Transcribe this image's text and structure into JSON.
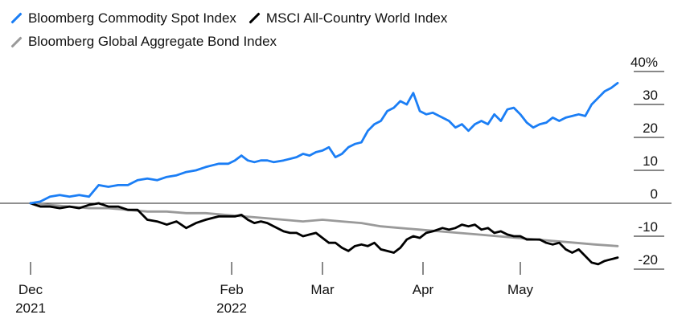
{
  "chart_data": {
    "type": "line",
    "title": "",
    "xlabel": "",
    "ylabel": "",
    "ylim": [
      -25,
      45
    ],
    "y_ticks": [
      {
        "value": 40,
        "label": "40%"
      },
      {
        "value": 30,
        "label": "30"
      },
      {
        "value": 20,
        "label": "20"
      },
      {
        "value": 10,
        "label": "10"
      },
      {
        "value": 0,
        "label": "0"
      },
      {
        "value": -10,
        "label": "-10"
      },
      {
        "value": -20,
        "label": "-20"
      }
    ],
    "x_ticks": [
      {
        "date": "2021-12-01",
        "label1": "Dec",
        "label2": "2021"
      },
      {
        "date": "2022-02-01",
        "label1": "Feb",
        "label2": "2022"
      },
      {
        "date": "2022-03-01",
        "label1": "Mar",
        "label2": ""
      },
      {
        "date": "2022-04-01",
        "label1": "Apr",
        "label2": ""
      },
      {
        "date": "2022-05-01",
        "label1": "May",
        "label2": ""
      }
    ],
    "xlim": [
      "2021-12-01",
      "2022-05-31"
    ],
    "legend_position": "top-left",
    "grid": false,
    "series": [
      {
        "name": "Bloomberg Commodity Spot Index",
        "color": "#1b7ef5",
        "points": [
          [
            "2021-12-01",
            0
          ],
          [
            "2021-12-04",
            0.5
          ],
          [
            "2021-12-07",
            2
          ],
          [
            "2021-12-10",
            2.5
          ],
          [
            "2021-12-13",
            2
          ],
          [
            "2021-12-16",
            2.5
          ],
          [
            "2021-12-19",
            2
          ],
          [
            "2021-12-22",
            5.5
          ],
          [
            "2021-12-25",
            5
          ],
          [
            "2021-12-28",
            5.5
          ],
          [
            "2021-12-31",
            5.5
          ],
          [
            "2022-01-03",
            7
          ],
          [
            "2022-01-06",
            7.5
          ],
          [
            "2022-01-09",
            7
          ],
          [
            "2022-01-12",
            8
          ],
          [
            "2022-01-15",
            8.5
          ],
          [
            "2022-01-18",
            9.5
          ],
          [
            "2022-01-21",
            10
          ],
          [
            "2022-01-24",
            11
          ],
          [
            "2022-01-26",
            11.5
          ],
          [
            "2022-01-28",
            12
          ],
          [
            "2022-01-31",
            12
          ],
          [
            "2022-02-02",
            13
          ],
          [
            "2022-02-04",
            14.5
          ],
          [
            "2022-02-06",
            13
          ],
          [
            "2022-02-08",
            12.5
          ],
          [
            "2022-02-10",
            13
          ],
          [
            "2022-02-12",
            13
          ],
          [
            "2022-02-14",
            12.5
          ],
          [
            "2022-02-17",
            13
          ],
          [
            "2022-02-19",
            13.5
          ],
          [
            "2022-02-21",
            14
          ],
          [
            "2022-02-23",
            15
          ],
          [
            "2022-02-25",
            14.5
          ],
          [
            "2022-02-27",
            15.5
          ],
          [
            "2022-03-01",
            16
          ],
          [
            "2022-03-03",
            17
          ],
          [
            "2022-03-05",
            14
          ],
          [
            "2022-03-07",
            15
          ],
          [
            "2022-03-09",
            17
          ],
          [
            "2022-03-11",
            18
          ],
          [
            "2022-03-13",
            18.5
          ],
          [
            "2022-03-15",
            22
          ],
          [
            "2022-03-17",
            24
          ],
          [
            "2022-03-19",
            25
          ],
          [
            "2022-03-21",
            28
          ],
          [
            "2022-03-23",
            29
          ],
          [
            "2022-03-25",
            31
          ],
          [
            "2022-03-27",
            30
          ],
          [
            "2022-03-29",
            33.5
          ],
          [
            "2022-03-31",
            28
          ],
          [
            "2022-04-02",
            27
          ],
          [
            "2022-04-04",
            27.5
          ],
          [
            "2022-04-07",
            26
          ],
          [
            "2022-04-09",
            25
          ],
          [
            "2022-04-11",
            23
          ],
          [
            "2022-04-13",
            24
          ],
          [
            "2022-04-15",
            22
          ],
          [
            "2022-04-17",
            24
          ],
          [
            "2022-04-19",
            25
          ],
          [
            "2022-04-21",
            24
          ],
          [
            "2022-04-23",
            27
          ],
          [
            "2022-04-25",
            25
          ],
          [
            "2022-04-27",
            28.5
          ],
          [
            "2022-04-29",
            29
          ],
          [
            "2022-05-01",
            27
          ],
          [
            "2022-05-03",
            24.5
          ],
          [
            "2022-05-05",
            23
          ],
          [
            "2022-05-07",
            24
          ],
          [
            "2022-05-09",
            24.5
          ],
          [
            "2022-05-11",
            26
          ],
          [
            "2022-05-13",
            25
          ],
          [
            "2022-05-15",
            26
          ],
          [
            "2022-05-17",
            26.5
          ],
          [
            "2022-05-19",
            27
          ],
          [
            "2022-05-21",
            26.5
          ],
          [
            "2022-05-23",
            30
          ],
          [
            "2022-05-25",
            32
          ],
          [
            "2022-05-27",
            34
          ],
          [
            "2022-05-29",
            35
          ],
          [
            "2022-05-31",
            36.5
          ]
        ]
      },
      {
        "name": "MSCI All-Country World Index",
        "color": "#000000",
        "points": [
          [
            "2021-12-01",
            0
          ],
          [
            "2021-12-04",
            -1
          ],
          [
            "2021-12-07",
            -1
          ],
          [
            "2021-12-10",
            -1.5
          ],
          [
            "2021-12-13",
            -1
          ],
          [
            "2021-12-16",
            -1.5
          ],
          [
            "2021-12-19",
            -0.5
          ],
          [
            "2021-12-22",
            0
          ],
          [
            "2021-12-25",
            -1
          ],
          [
            "2021-12-28",
            -1
          ],
          [
            "2021-12-31",
            -2
          ],
          [
            "2022-01-03",
            -2
          ],
          [
            "2022-01-06",
            -5
          ],
          [
            "2022-01-09",
            -5.5
          ],
          [
            "2022-01-12",
            -6.5
          ],
          [
            "2022-01-15",
            -5.5
          ],
          [
            "2022-01-18",
            -7.5
          ],
          [
            "2022-01-21",
            -6
          ],
          [
            "2022-01-24",
            -5
          ],
          [
            "2022-01-26",
            -4.5
          ],
          [
            "2022-01-28",
            -4
          ],
          [
            "2022-01-31",
            -4
          ],
          [
            "2022-02-02",
            -4
          ],
          [
            "2022-02-04",
            -3.5
          ],
          [
            "2022-02-06",
            -5
          ],
          [
            "2022-02-08",
            -6
          ],
          [
            "2022-02-10",
            -5.5
          ],
          [
            "2022-02-12",
            -6
          ],
          [
            "2022-02-14",
            -7
          ],
          [
            "2022-02-17",
            -8.5
          ],
          [
            "2022-02-19",
            -9
          ],
          [
            "2022-02-21",
            -9
          ],
          [
            "2022-02-23",
            -10
          ],
          [
            "2022-02-25",
            -9.5
          ],
          [
            "2022-02-27",
            -9
          ],
          [
            "2022-03-01",
            -10.5
          ],
          [
            "2022-03-03",
            -12
          ],
          [
            "2022-03-05",
            -12
          ],
          [
            "2022-03-07",
            -13.5
          ],
          [
            "2022-03-09",
            -14.5
          ],
          [
            "2022-03-11",
            -13
          ],
          [
            "2022-03-13",
            -12.5
          ],
          [
            "2022-03-15",
            -13
          ],
          [
            "2022-03-17",
            -12
          ],
          [
            "2022-03-19",
            -14
          ],
          [
            "2022-03-21",
            -14.5
          ],
          [
            "2022-03-23",
            -15
          ],
          [
            "2022-03-25",
            -13.5
          ],
          [
            "2022-03-27",
            -11
          ],
          [
            "2022-03-29",
            -10
          ],
          [
            "2022-03-31",
            -10.5
          ],
          [
            "2022-04-02",
            -9
          ],
          [
            "2022-04-04",
            -8.5
          ],
          [
            "2022-04-07",
            -7.5
          ],
          [
            "2022-04-09",
            -8
          ],
          [
            "2022-04-11",
            -7.5
          ],
          [
            "2022-04-13",
            -6.5
          ],
          [
            "2022-04-15",
            -7
          ],
          [
            "2022-04-17",
            -6.5
          ],
          [
            "2022-04-19",
            -8
          ],
          [
            "2022-04-21",
            -7.5
          ],
          [
            "2022-04-23",
            -9
          ],
          [
            "2022-04-25",
            -8.5
          ],
          [
            "2022-04-27",
            -9.5
          ],
          [
            "2022-04-29",
            -10
          ],
          [
            "2022-05-01",
            -10
          ],
          [
            "2022-05-03",
            -11
          ],
          [
            "2022-05-05",
            -11
          ],
          [
            "2022-05-07",
            -11
          ],
          [
            "2022-05-09",
            -12
          ],
          [
            "2022-05-11",
            -12.5
          ],
          [
            "2022-05-13",
            -12
          ],
          [
            "2022-05-15",
            -14
          ],
          [
            "2022-05-17",
            -15
          ],
          [
            "2022-05-19",
            -14
          ],
          [
            "2022-05-21",
            -16
          ],
          [
            "2022-05-23",
            -18
          ],
          [
            "2022-05-25",
            -18.5
          ],
          [
            "2022-05-27",
            -17.5
          ],
          [
            "2022-05-29",
            -17
          ],
          [
            "2022-05-31",
            -16.5
          ]
        ]
      },
      {
        "name": "Bloomberg Global Aggregate Bond Index",
        "color": "#9a9a9a",
        "points": [
          [
            "2021-12-01",
            0
          ],
          [
            "2021-12-07",
            -0.5
          ],
          [
            "2021-12-13",
            -1
          ],
          [
            "2021-12-19",
            -1.5
          ],
          [
            "2021-12-25",
            -1.5
          ],
          [
            "2021-12-31",
            -2
          ],
          [
            "2022-01-06",
            -2.5
          ],
          [
            "2022-01-12",
            -2.5
          ],
          [
            "2022-01-18",
            -3
          ],
          [
            "2022-01-24",
            -3
          ],
          [
            "2022-01-30",
            -3.5
          ],
          [
            "2022-02-05",
            -4
          ],
          [
            "2022-02-11",
            -4.5
          ],
          [
            "2022-02-17",
            -5
          ],
          [
            "2022-02-23",
            -5.5
          ],
          [
            "2022-03-01",
            -5
          ],
          [
            "2022-03-07",
            -5.5
          ],
          [
            "2022-03-13",
            -6
          ],
          [
            "2022-03-19",
            -7
          ],
          [
            "2022-03-25",
            -7.5
          ],
          [
            "2022-03-31",
            -8
          ],
          [
            "2022-04-06",
            -8.5
          ],
          [
            "2022-04-12",
            -9
          ],
          [
            "2022-04-18",
            -9.5
          ],
          [
            "2022-04-24",
            -10
          ],
          [
            "2022-04-30",
            -10.5
          ],
          [
            "2022-05-06",
            -11
          ],
          [
            "2022-05-12",
            -11.5
          ],
          [
            "2022-05-18",
            -12
          ],
          [
            "2022-05-24",
            -12.5
          ],
          [
            "2022-05-31",
            -13
          ]
        ]
      }
    ]
  }
}
